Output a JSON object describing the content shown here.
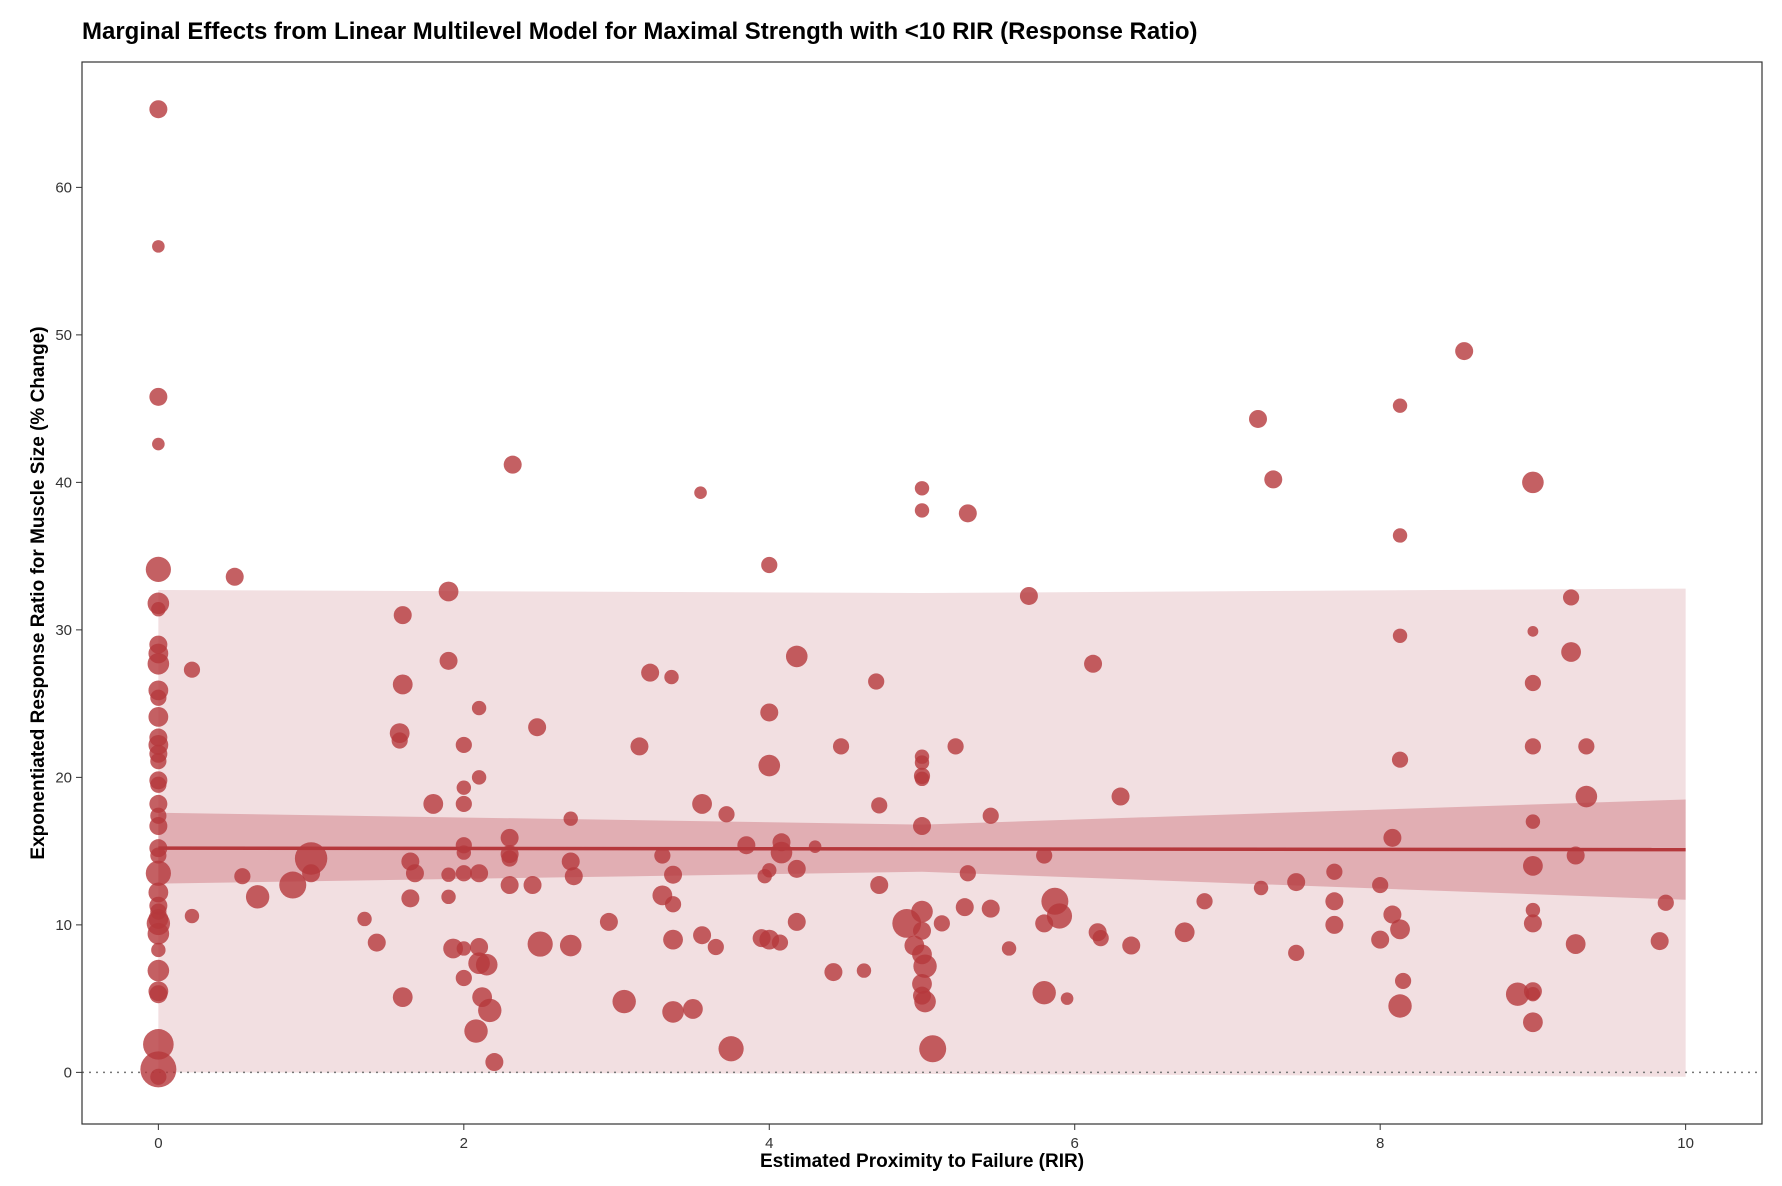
{
  "chart_data": {
    "type": "scatter",
    "title": "Marginal Effects from Linear Multilevel Model for Maximal Strength with <10 RIR (Response Ratio)",
    "xlabel": "Estimated Proximity to Failure (RIR)",
    "ylabel": "Exponentiated Response Ratio for Muscle Size (% Change)",
    "xlim": [
      -0.5,
      10.5
    ],
    "ylim": [
      -3.5,
      68.5
    ],
    "x_ticks": [
      0,
      2,
      4,
      6,
      8,
      10
    ],
    "y_ticks": [
      0,
      10,
      20,
      30,
      40,
      50,
      60
    ],
    "grid": false,
    "reference_line": {
      "y": 0,
      "style": "dotted"
    },
    "colors": {
      "points": "#b5383c",
      "fit_line": "#b5383c",
      "confidence_band": "#d58e94",
      "prediction_band": "#f2dfe1"
    },
    "fit_line": {
      "x": [
        0,
        10
      ],
      "y": [
        15.2,
        15.1
      ]
    },
    "confidence_band": {
      "x": [
        0,
        5,
        10
      ],
      "lower": [
        12.8,
        13.6,
        11.7
      ],
      "upper": [
        17.6,
        16.8,
        18.5
      ]
    },
    "prediction_band": {
      "x": [
        0,
        5,
        10
      ],
      "lower": [
        0,
        -0.1,
        -0.3
      ],
      "upper": [
        32.7,
        32.5,
        32.8
      ]
    },
    "points": [
      {
        "x": 0,
        "y": 65.3,
        "w": 1.0
      },
      {
        "x": 0,
        "y": 56,
        "w": 0.7
      },
      {
        "x": 0,
        "y": 45.8,
        "w": 1.0
      },
      {
        "x": 0,
        "y": 42.6,
        "w": 0.7
      },
      {
        "x": 0,
        "y": 34.1,
        "w": 1.4
      },
      {
        "x": 0,
        "y": 31.8,
        "w": 1.2
      },
      {
        "x": 0,
        "y": 31.4,
        "w": 0.8
      },
      {
        "x": 0,
        "y": 29,
        "w": 1.0
      },
      {
        "x": 0,
        "y": 28.4,
        "w": 1.1
      },
      {
        "x": 0,
        "y": 27.7,
        "w": 1.2
      },
      {
        "x": 0,
        "y": 25.9,
        "w": 1.1
      },
      {
        "x": 0,
        "y": 25.4,
        "w": 0.9
      },
      {
        "x": 0,
        "y": 24.1,
        "w": 1.1
      },
      {
        "x": 0,
        "y": 22.7,
        "w": 1.0
      },
      {
        "x": 0,
        "y": 22.2,
        "w": 1.1
      },
      {
        "x": 0,
        "y": 21.6,
        "w": 1.0
      },
      {
        "x": 0,
        "y": 21.1,
        "w": 0.9
      },
      {
        "x": 0,
        "y": 19.8,
        "w": 1.0
      },
      {
        "x": 0,
        "y": 19.5,
        "w": 0.9
      },
      {
        "x": 0,
        "y": 18.2,
        "w": 1.0
      },
      {
        "x": 0,
        "y": 17.4,
        "w": 0.9
      },
      {
        "x": 0,
        "y": 16.7,
        "w": 1.0
      },
      {
        "x": 0,
        "y": 15.2,
        "w": 1.0
      },
      {
        "x": 0,
        "y": 14.7,
        "w": 0.9
      },
      {
        "x": 0,
        "y": 13.5,
        "w": 1.4
      },
      {
        "x": 0,
        "y": 12.2,
        "w": 1.1
      },
      {
        "x": 0,
        "y": 11.3,
        "w": 1.0
      },
      {
        "x": 0,
        "y": 10.9,
        "w": 0.9
      },
      {
        "x": 0,
        "y": 10.4,
        "w": 1.1
      },
      {
        "x": 0,
        "y": 10.1,
        "w": 1.3
      },
      {
        "x": 0,
        "y": 9.4,
        "w": 1.2
      },
      {
        "x": 0,
        "y": 8.3,
        "w": 0.8
      },
      {
        "x": 0,
        "y": 6.9,
        "w": 1.2
      },
      {
        "x": 0,
        "y": 5.5,
        "w": 1.1
      },
      {
        "x": 0,
        "y": 5.3,
        "w": 1.0
      },
      {
        "x": 0,
        "y": 1.9,
        "w": 1.7
      },
      {
        "x": 0,
        "y": 0.2,
        "w": 2.0
      },
      {
        "x": 0,
        "y": -0.3,
        "w": 0.9
      },
      {
        "x": 0.22,
        "y": 27.3,
        "w": 0.9
      },
      {
        "x": 0.22,
        "y": 10.6,
        "w": 0.8
      },
      {
        "x": 0.5,
        "y": 33.6,
        "w": 1.0
      },
      {
        "x": 0.55,
        "y": 13.3,
        "w": 0.9
      },
      {
        "x": 0.65,
        "y": 11.9,
        "w": 1.3
      },
      {
        "x": 0.88,
        "y": 12.7,
        "w": 1.5
      },
      {
        "x": 1.0,
        "y": 14.5,
        "w": 1.8
      },
      {
        "x": 1.0,
        "y": 13.5,
        "w": 1.0
      },
      {
        "x": 1.35,
        "y": 10.4,
        "w": 0.8
      },
      {
        "x": 1.43,
        "y": 8.8,
        "w": 1.0
      },
      {
        "x": 1.6,
        "y": 31.0,
        "w": 1.0
      },
      {
        "x": 1.6,
        "y": 26.3,
        "w": 1.1
      },
      {
        "x": 1.58,
        "y": 23.0,
        "w": 1.1
      },
      {
        "x": 1.58,
        "y": 22.5,
        "w": 0.9
      },
      {
        "x": 1.65,
        "y": 14.3,
        "w": 1.0
      },
      {
        "x": 1.68,
        "y": 13.5,
        "w": 1.0
      },
      {
        "x": 1.65,
        "y": 11.8,
        "w": 1.0
      },
      {
        "x": 1.6,
        "y": 5.1,
        "w": 1.1
      },
      {
        "x": 1.8,
        "y": 18.2,
        "w": 1.1
      },
      {
        "x": 1.9,
        "y": 32.6,
        "w": 1.1
      },
      {
        "x": 1.9,
        "y": 27.9,
        "w": 1.0
      },
      {
        "x": 1.9,
        "y": 13.4,
        "w": 0.8
      },
      {
        "x": 1.9,
        "y": 11.9,
        "w": 0.8
      },
      {
        "x": 1.93,
        "y": 8.4,
        "w": 1.1
      },
      {
        "x": 2.0,
        "y": 22.2,
        "w": 0.9
      },
      {
        "x": 2.0,
        "y": 19.3,
        "w": 0.8
      },
      {
        "x": 2.0,
        "y": 18.2,
        "w": 0.9
      },
      {
        "x": 2.0,
        "y": 15.4,
        "w": 0.9
      },
      {
        "x": 2.0,
        "y": 14.9,
        "w": 0.8
      },
      {
        "x": 2.0,
        "y": 13.5,
        "w": 0.9
      },
      {
        "x": 2.0,
        "y": 8.4,
        "w": 0.8
      },
      {
        "x": 2.0,
        "y": 6.4,
        "w": 0.9
      },
      {
        "x": 2.1,
        "y": 24.7,
        "w": 0.8
      },
      {
        "x": 2.1,
        "y": 20.0,
        "w": 0.8
      },
      {
        "x": 2.1,
        "y": 13.5,
        "w": 1.0
      },
      {
        "x": 2.1,
        "y": 8.5,
        "w": 1.0
      },
      {
        "x": 2.1,
        "y": 7.4,
        "w": 1.2
      },
      {
        "x": 2.15,
        "y": 7.3,
        "w": 1.2
      },
      {
        "x": 2.12,
        "y": 5.1,
        "w": 1.1
      },
      {
        "x": 2.17,
        "y": 4.2,
        "w": 1.3
      },
      {
        "x": 2.08,
        "y": 2.8,
        "w": 1.3
      },
      {
        "x": 2.2,
        "y": 0.7,
        "w": 1.0
      },
      {
        "x": 2.32,
        "y": 41.2,
        "w": 1.0
      },
      {
        "x": 2.3,
        "y": 15.9,
        "w": 1.0
      },
      {
        "x": 2.3,
        "y": 14.8,
        "w": 1.0
      },
      {
        "x": 2.3,
        "y": 14.5,
        "w": 0.9
      },
      {
        "x": 2.3,
        "y": 12.7,
        "w": 1.0
      },
      {
        "x": 2.48,
        "y": 23.4,
        "w": 1.0
      },
      {
        "x": 2.45,
        "y": 12.7,
        "w": 1.0
      },
      {
        "x": 2.5,
        "y": 8.7,
        "w": 1.4
      },
      {
        "x": 2.7,
        "y": 17.2,
        "w": 0.8
      },
      {
        "x": 2.7,
        "y": 14.3,
        "w": 1.0
      },
      {
        "x": 2.72,
        "y": 13.3,
        "w": 1.0
      },
      {
        "x": 2.7,
        "y": 8.6,
        "w": 1.2
      },
      {
        "x": 2.95,
        "y": 10.2,
        "w": 1.0
      },
      {
        "x": 3.05,
        "y": 4.8,
        "w": 1.3
      },
      {
        "x": 3.15,
        "y": 22.1,
        "w": 1.0
      },
      {
        "x": 3.22,
        "y": 27.1,
        "w": 1.0
      },
      {
        "x": 3.3,
        "y": 14.7,
        "w": 0.9
      },
      {
        "x": 3.3,
        "y": 12.0,
        "w": 1.1
      },
      {
        "x": 3.36,
        "y": 26.8,
        "w": 0.8
      },
      {
        "x": 3.37,
        "y": 13.4,
        "w": 1.0
      },
      {
        "x": 3.37,
        "y": 11.4,
        "w": 0.9
      },
      {
        "x": 3.37,
        "y": 9.0,
        "w": 1.1
      },
      {
        "x": 3.37,
        "y": 4.1,
        "w": 1.2
      },
      {
        "x": 3.5,
        "y": 4.3,
        "w": 1.1
      },
      {
        "x": 3.55,
        "y": 39.3,
        "w": 0.7
      },
      {
        "x": 3.56,
        "y": 18.2,
        "w": 1.1
      },
      {
        "x": 3.56,
        "y": 9.3,
        "w": 1.0
      },
      {
        "x": 3.65,
        "y": 8.5,
        "w": 0.9
      },
      {
        "x": 3.72,
        "y": 17.5,
        "w": 0.9
      },
      {
        "x": 3.75,
        "y": 1.6,
        "w": 1.4
      },
      {
        "x": 3.85,
        "y": 15.4,
        "w": 1.0
      },
      {
        "x": 3.95,
        "y": 9.1,
        "w": 1.0
      },
      {
        "x": 3.97,
        "y": 13.3,
        "w": 0.8
      },
      {
        "x": 4.0,
        "y": 34.4,
        "w": 0.9
      },
      {
        "x": 4.0,
        "y": 24.4,
        "w": 1.0
      },
      {
        "x": 4.0,
        "y": 20.8,
        "w": 1.2
      },
      {
        "x": 4.0,
        "y": 13.7,
        "w": 0.8
      },
      {
        "x": 4.0,
        "y": 9.0,
        "w": 1.1
      },
      {
        "x": 4.07,
        "y": 8.8,
        "w": 0.9
      },
      {
        "x": 4.08,
        "y": 15.6,
        "w": 1.0
      },
      {
        "x": 4.08,
        "y": 14.9,
        "w": 1.2
      },
      {
        "x": 4.18,
        "y": 28.2,
        "w": 1.2
      },
      {
        "x": 4.18,
        "y": 13.8,
        "w": 1.0
      },
      {
        "x": 4.18,
        "y": 10.2,
        "w": 1.0
      },
      {
        "x": 4.3,
        "y": 15.3,
        "w": 0.7
      },
      {
        "x": 4.42,
        "y": 6.8,
        "w": 1.0
      },
      {
        "x": 4.47,
        "y": 22.1,
        "w": 0.9
      },
      {
        "x": 4.62,
        "y": 6.9,
        "w": 0.8
      },
      {
        "x": 4.7,
        "y": 26.5,
        "w": 0.9
      },
      {
        "x": 4.72,
        "y": 18.1,
        "w": 0.9
      },
      {
        "x": 4.72,
        "y": 12.7,
        "w": 1.0
      },
      {
        "x": 4.9,
        "y": 10.1,
        "w": 1.6
      },
      {
        "x": 4.95,
        "y": 8.6,
        "w": 1.1
      },
      {
        "x": 5.0,
        "y": 39.6,
        "w": 0.8
      },
      {
        "x": 5.0,
        "y": 38.1,
        "w": 0.8
      },
      {
        "x": 5.0,
        "y": 21.4,
        "w": 0.8
      },
      {
        "x": 5.0,
        "y": 21.0,
        "w": 0.8
      },
      {
        "x": 5.0,
        "y": 20.1,
        "w": 0.9
      },
      {
        "x": 5.0,
        "y": 19.9,
        "w": 0.8
      },
      {
        "x": 5.0,
        "y": 16.7,
        "w": 1.0
      },
      {
        "x": 5.0,
        "y": 10.9,
        "w": 1.2
      },
      {
        "x": 5.0,
        "y": 9.6,
        "w": 1.0
      },
      {
        "x": 5.0,
        "y": 8.0,
        "w": 1.1
      },
      {
        "x": 5.02,
        "y": 7.2,
        "w": 1.3
      },
      {
        "x": 5.0,
        "y": 6.0,
        "w": 1.1
      },
      {
        "x": 5.0,
        "y": 5.2,
        "w": 1.0
      },
      {
        "x": 5.02,
        "y": 4.8,
        "w": 1.2
      },
      {
        "x": 5.07,
        "y": 1.6,
        "w": 1.5
      },
      {
        "x": 5.13,
        "y": 10.1,
        "w": 0.9
      },
      {
        "x": 5.22,
        "y": 22.1,
        "w": 0.9
      },
      {
        "x": 5.28,
        "y": 11.2,
        "w": 1.0
      },
      {
        "x": 5.3,
        "y": 37.9,
        "w": 1.0
      },
      {
        "x": 5.3,
        "y": 13.5,
        "w": 0.9
      },
      {
        "x": 5.45,
        "y": 17.4,
        "w": 0.9
      },
      {
        "x": 5.45,
        "y": 11.1,
        "w": 1.0
      },
      {
        "x": 5.57,
        "y": 8.4,
        "w": 0.8
      },
      {
        "x": 5.7,
        "y": 32.3,
        "w": 1.0
      },
      {
        "x": 5.8,
        "y": 14.7,
        "w": 0.9
      },
      {
        "x": 5.8,
        "y": 10.1,
        "w": 1.0
      },
      {
        "x": 5.8,
        "y": 5.4,
        "w": 1.3
      },
      {
        "x": 5.87,
        "y": 11.6,
        "w": 1.5
      },
      {
        "x": 5.9,
        "y": 10.6,
        "w": 1.4
      },
      {
        "x": 5.95,
        "y": 5.0,
        "w": 0.7
      },
      {
        "x": 6.12,
        "y": 27.7,
        "w": 1.0
      },
      {
        "x": 6.15,
        "y": 9.5,
        "w": 1.0
      },
      {
        "x": 6.17,
        "y": 9.1,
        "w": 0.9
      },
      {
        "x": 6.3,
        "y": 18.7,
        "w": 1.0
      },
      {
        "x": 6.37,
        "y": 8.6,
        "w": 1.0
      },
      {
        "x": 6.72,
        "y": 9.5,
        "w": 1.1
      },
      {
        "x": 6.85,
        "y": 11.6,
        "w": 0.9
      },
      {
        "x": 7.2,
        "y": 44.3,
        "w": 1.0
      },
      {
        "x": 7.22,
        "y": 12.5,
        "w": 0.8
      },
      {
        "x": 7.3,
        "y": 40.2,
        "w": 1.0
      },
      {
        "x": 7.45,
        "y": 12.9,
        "w": 1.0
      },
      {
        "x": 7.45,
        "y": 8.1,
        "w": 0.9
      },
      {
        "x": 7.7,
        "y": 13.6,
        "w": 0.9
      },
      {
        "x": 7.7,
        "y": 11.6,
        "w": 1.0
      },
      {
        "x": 7.7,
        "y": 10.0,
        "w": 1.0
      },
      {
        "x": 8.0,
        "y": 12.7,
        "w": 0.9
      },
      {
        "x": 8.0,
        "y": 9.0,
        "w": 1.0
      },
      {
        "x": 8.08,
        "y": 15.9,
        "w": 1.0
      },
      {
        "x": 8.08,
        "y": 10.7,
        "w": 1.0
      },
      {
        "x": 8.13,
        "y": 45.2,
        "w": 0.8
      },
      {
        "x": 8.13,
        "y": 36.4,
        "w": 0.8
      },
      {
        "x": 8.13,
        "y": 29.6,
        "w": 0.8
      },
      {
        "x": 8.13,
        "y": 21.2,
        "w": 0.9
      },
      {
        "x": 8.13,
        "y": 9.7,
        "w": 1.1
      },
      {
        "x": 8.15,
        "y": 6.2,
        "w": 0.9
      },
      {
        "x": 8.13,
        "y": 4.5,
        "w": 1.3
      },
      {
        "x": 8.55,
        "y": 48.9,
        "w": 1.0
      },
      {
        "x": 8.9,
        "y": 5.3,
        "w": 1.3
      },
      {
        "x": 9.0,
        "y": 40.0,
        "w": 1.2
      },
      {
        "x": 9.0,
        "y": 29.9,
        "w": 0.6
      },
      {
        "x": 9.0,
        "y": 26.4,
        "w": 0.9
      },
      {
        "x": 9.0,
        "y": 22.1,
        "w": 0.9
      },
      {
        "x": 9.0,
        "y": 17.0,
        "w": 0.8
      },
      {
        "x": 9.0,
        "y": 14.0,
        "w": 1.1
      },
      {
        "x": 9.0,
        "y": 11.0,
        "w": 0.8
      },
      {
        "x": 9.0,
        "y": 10.1,
        "w": 1.0
      },
      {
        "x": 9.0,
        "y": 5.5,
        "w": 1.0
      },
      {
        "x": 9.0,
        "y": 5.3,
        "w": 0.8
      },
      {
        "x": 9.0,
        "y": 3.4,
        "w": 1.1
      },
      {
        "x": 9.25,
        "y": 32.2,
        "w": 0.9
      },
      {
        "x": 9.25,
        "y": 28.5,
        "w": 1.1
      },
      {
        "x": 9.28,
        "y": 14.7,
        "w": 1.0
      },
      {
        "x": 9.28,
        "y": 8.7,
        "w": 1.1
      },
      {
        "x": 9.35,
        "y": 22.1,
        "w": 0.9
      },
      {
        "x": 9.35,
        "y": 18.7,
        "w": 1.2
      },
      {
        "x": 9.83,
        "y": 8.9,
        "w": 1.0
      },
      {
        "x": 9.87,
        "y": 11.5,
        "w": 0.9
      }
    ]
  }
}
